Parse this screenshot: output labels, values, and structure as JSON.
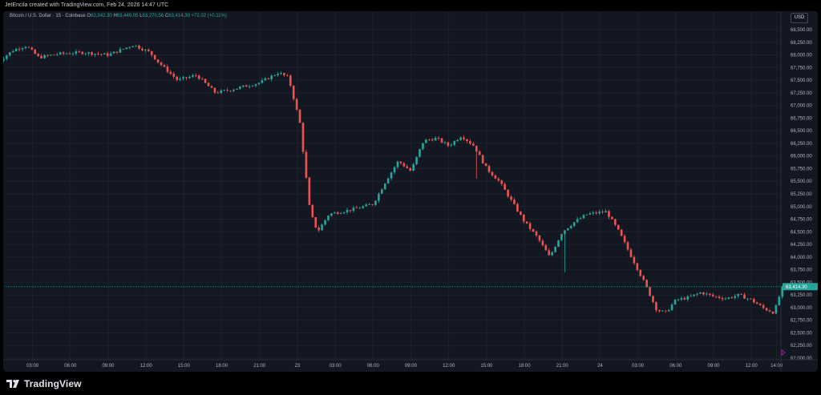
{
  "header": {
    "caption": "JetEncila created with TradingView.com, Feb 24, 2026 14:47 UTC"
  },
  "legend": {
    "symbol": "Bitcoin / U.S. Dollar · 15 · Coinbase",
    "o_label": "O",
    "o": "63,342.30",
    "h_label": "H",
    "h": "63,449.05",
    "l_label": "L",
    "l": "63,270.56",
    "c_label": "C",
    "c": "63,414.30",
    "change": "+72.02 (+0.11%)"
  },
  "currency_button": "USD",
  "footer": {
    "brand": "TradingView"
  },
  "colors": {
    "up": "#26a69a",
    "down": "#ef5350",
    "bg": "#131722",
    "grid": "#1e222d",
    "price_line": "#26a69a"
  },
  "chart_data": {
    "type": "candlestick",
    "ylim": [
      62000,
      68750
    ],
    "y_ticks": [
      "68,500.00",
      "68,250.00",
      "68,000.00",
      "67,750.00",
      "67,500.00",
      "67,250.00",
      "67,000.00",
      "66,750.00",
      "66,500.00",
      "66,250.00",
      "66,000.00",
      "65,750.00",
      "65,500.00",
      "65,250.00",
      "65,000.00",
      "64,750.00",
      "64,500.00",
      "64,250.00",
      "64,000.00",
      "63,750.00",
      "63,500.00",
      "63,250.00",
      "63,000.00",
      "62,750.00",
      "62,500.00",
      "62,250.00",
      "62,000.00"
    ],
    "x_ticks": [
      {
        "label": "03:00",
        "hour": 3
      },
      {
        "label": "06:00",
        "hour": 6
      },
      {
        "label": "09:00",
        "hour": 9
      },
      {
        "label": "12:00",
        "hour": 12
      },
      {
        "label": "15:00",
        "hour": 15
      },
      {
        "label": "18:00",
        "hour": 18
      },
      {
        "label": "21:00",
        "hour": 21
      },
      {
        "label": "23",
        "hour": 24
      },
      {
        "label": "03:00",
        "hour": 27
      },
      {
        "label": "06:00",
        "hour": 30
      },
      {
        "label": "09:00",
        "hour": 33
      },
      {
        "label": "12:00",
        "hour": 36
      },
      {
        "label": "15:00",
        "hour": 39
      },
      {
        "label": "18:00",
        "hour": 42
      },
      {
        "label": "21:00",
        "hour": 45
      },
      {
        "label": "24",
        "hour": 48
      },
      {
        "label": "03:00",
        "hour": 51
      },
      {
        "label": "06:00",
        "hour": 54
      },
      {
        "label": "09:00",
        "hour": 57
      },
      {
        "label": "12:00",
        "hour": 60
      },
      {
        "label": "14:00",
        "hour": 62
      }
    ],
    "current_price": "63,414.30",
    "current_price_value": 63414.3,
    "candle_interval": "15",
    "anchors": [
      {
        "hour": 0.2,
        "price": 67850
      },
      {
        "hour": 1.5,
        "price": 68100
      },
      {
        "hour": 2.5,
        "price": 68180
      },
      {
        "hour": 3.5,
        "price": 67950
      },
      {
        "hour": 5,
        "price": 68020
      },
      {
        "hour": 7,
        "price": 68050
      },
      {
        "hour": 9,
        "price": 68000
      },
      {
        "hour": 11,
        "price": 68200
      },
      {
        "hour": 12.3,
        "price": 68050
      },
      {
        "hour": 13,
        "price": 67850
      },
      {
        "hour": 14.5,
        "price": 67500
      },
      {
        "hour": 16,
        "price": 67600
      },
      {
        "hour": 17.5,
        "price": 67250
      },
      {
        "hour": 19,
        "price": 67330
      },
      {
        "hour": 21,
        "price": 67450
      },
      {
        "hour": 22.5,
        "price": 67650
      },
      {
        "hour": 23.3,
        "price": 67550
      },
      {
        "hour": 24.2,
        "price": 66650
      },
      {
        "hour": 25,
        "price": 64900
      },
      {
        "hour": 25.6,
        "price": 64500
      },
      {
        "hour": 26.5,
        "price": 64850
      },
      {
        "hour": 28.5,
        "price": 64950
      },
      {
        "hour": 30,
        "price": 65050
      },
      {
        "hour": 31,
        "price": 65500
      },
      {
        "hour": 32,
        "price": 65900
      },
      {
        "hour": 33,
        "price": 65700
      },
      {
        "hour": 34,
        "price": 66300
      },
      {
        "hour": 35,
        "price": 66350
      },
      {
        "hour": 36,
        "price": 66200
      },
      {
        "hour": 37,
        "price": 66400
      },
      {
        "hour": 38,
        "price": 66200
      },
      {
        "hour": 39,
        "price": 65750
      },
      {
        "hour": 40,
        "price": 65500
      },
      {
        "hour": 41,
        "price": 65100
      },
      {
        "hour": 42,
        "price": 64700
      },
      {
        "hour": 43,
        "price": 64400
      },
      {
        "hour": 44,
        "price": 64000
      },
      {
        "hour": 45,
        "price": 64500
      },
      {
        "hour": 46,
        "price": 64700
      },
      {
        "hour": 47,
        "price": 64850
      },
      {
        "hour": 48.5,
        "price": 64900
      },
      {
        "hour": 49.5,
        "price": 64500
      },
      {
        "hour": 50.5,
        "price": 64000
      },
      {
        "hour": 51.5,
        "price": 63500
      },
      {
        "hour": 52.5,
        "price": 62950
      },
      {
        "hour": 53.2,
        "price": 62900
      },
      {
        "hour": 54,
        "price": 63150
      },
      {
        "hour": 55,
        "price": 63200
      },
      {
        "hour": 56,
        "price": 63300
      },
      {
        "hour": 57,
        "price": 63220
      },
      {
        "hour": 58,
        "price": 63180
      },
      {
        "hour": 59,
        "price": 63250
      },
      {
        "hour": 60,
        "price": 63150
      },
      {
        "hour": 61,
        "price": 62980
      },
      {
        "hour": 61.8,
        "price": 62900
      },
      {
        "hour": 62.45,
        "price": 63414
      }
    ]
  }
}
